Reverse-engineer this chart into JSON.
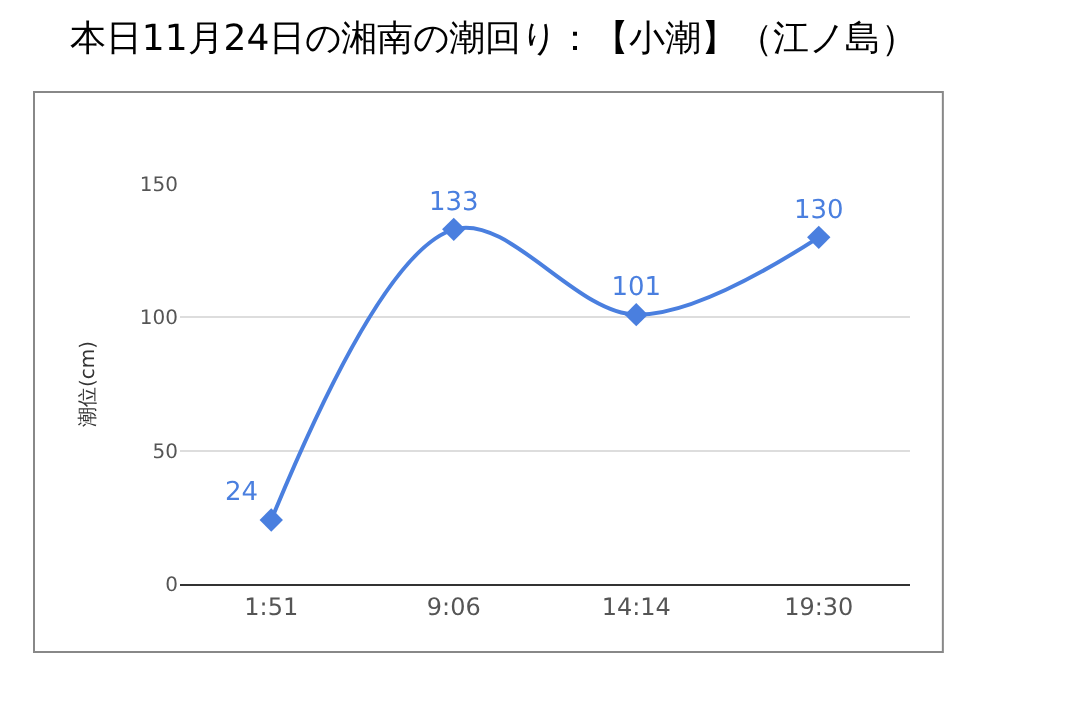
{
  "chart_data": {
    "type": "line",
    "title": "本日11月24日の湘南の潮回り：【小潮】（江ノ島）",
    "ylabel": "潮位(cm)",
    "categories": [
      "1:51",
      "9:06",
      "14:14",
      "19:30"
    ],
    "series": [
      {
        "color": "#4a7fdf",
        "values": [
          24,
          133,
          101,
          130
        ]
      }
    ],
    "ylim": [
      0,
      150
    ],
    "yticks": [
      0,
      50,
      100,
      150
    ],
    "grid": "y",
    "marker": "diamond",
    "line_style": "solid",
    "data_labels": true
  }
}
